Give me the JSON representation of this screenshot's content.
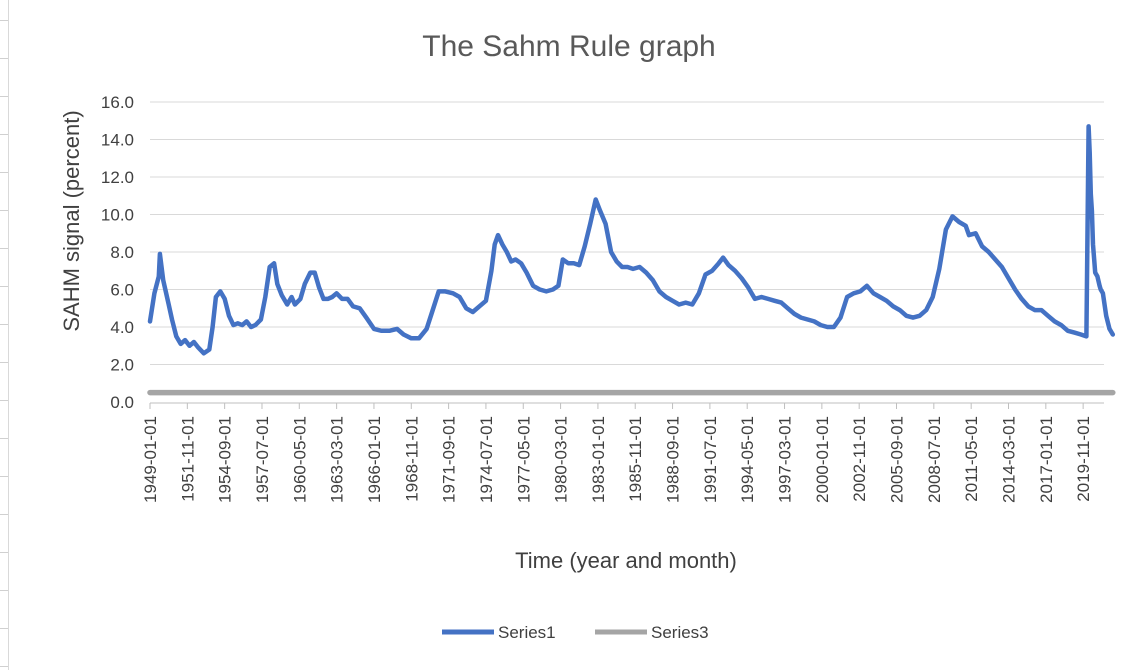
{
  "chart_data": {
    "type": "line",
    "title": "The Sahm Rule graph",
    "xlabel": "Time (year and month)",
    "ylabel": "SAHM signal (percent)",
    "ylim": [
      0,
      16
    ],
    "yticks": [
      "0.0",
      "2.0",
      "4.0",
      "6.0",
      "8.0",
      "10.0",
      "12.0",
      "14.0",
      "16.0"
    ],
    "xticks": [
      "1949-01-01",
      "1951-11-01",
      "1954-09-01",
      "1957-07-01",
      "1960-05-01",
      "1963-03-01",
      "1966-01-01",
      "1968-11-01",
      "1971-09-01",
      "1974-07-01",
      "1977-05-01",
      "1980-03-01",
      "1983-01-01",
      "1985-11-01",
      "1988-09-01",
      "1991-07-01",
      "1994-05-01",
      "1997-03-01",
      "2000-01-01",
      "2002-11-01",
      "2005-09-01",
      "2008-07-01",
      "2011-05-01",
      "2014-03-01",
      "2017-01-01",
      "2019-11-01"
    ],
    "x_range": [
      "1949-01-01",
      "2021-06-01"
    ],
    "grid": true,
    "legend_position": "bottom",
    "colors": {
      "series1": "#4472c4",
      "series3": "#a5a5a5"
    },
    "series": [
      {
        "name": "Series1",
        "points": [
          [
            "1949-01-01",
            4.3
          ],
          [
            "1949-05-01",
            5.8
          ],
          [
            "1949-09-01",
            6.7
          ],
          [
            "1949-10-01",
            7.9
          ],
          [
            "1950-01-01",
            6.5
          ],
          [
            "1950-06-01",
            5.2
          ],
          [
            "1950-09-01",
            4.4
          ],
          [
            "1951-01-01",
            3.5
          ],
          [
            "1951-05-01",
            3.1
          ],
          [
            "1951-09-01",
            3.3
          ],
          [
            "1952-01-01",
            3.0
          ],
          [
            "1952-05-01",
            3.2
          ],
          [
            "1952-09-01",
            2.9
          ],
          [
            "1953-02-01",
            2.6
          ],
          [
            "1953-07-01",
            2.8
          ],
          [
            "1953-10-01",
            4.0
          ],
          [
            "1954-01-01",
            5.6
          ],
          [
            "1954-05-01",
            5.9
          ],
          [
            "1954-09-01",
            5.5
          ],
          [
            "1955-01-01",
            4.6
          ],
          [
            "1955-05-01",
            4.1
          ],
          [
            "1955-09-01",
            4.2
          ],
          [
            "1956-01-01",
            4.1
          ],
          [
            "1956-05-01",
            4.3
          ],
          [
            "1956-09-01",
            4.0
          ],
          [
            "1957-01-01",
            4.1
          ],
          [
            "1957-06-01",
            4.4
          ],
          [
            "1957-10-01",
            5.6
          ],
          [
            "1958-02-01",
            7.2
          ],
          [
            "1958-06-01",
            7.4
          ],
          [
            "1958-09-01",
            6.3
          ],
          [
            "1959-01-01",
            5.7
          ],
          [
            "1959-06-01",
            5.2
          ],
          [
            "1959-10-01",
            5.6
          ],
          [
            "1960-01-01",
            5.2
          ],
          [
            "1960-06-01",
            5.5
          ],
          [
            "1960-10-01",
            6.3
          ],
          [
            "1961-03-01",
            6.9
          ],
          [
            "1961-07-01",
            6.9
          ],
          [
            "1961-11-01",
            6.1
          ],
          [
            "1962-03-01",
            5.5
          ],
          [
            "1962-07-01",
            5.5
          ],
          [
            "1962-11-01",
            5.6
          ],
          [
            "1963-03-01",
            5.8
          ],
          [
            "1963-08-01",
            5.5
          ],
          [
            "1964-01-01",
            5.5
          ],
          [
            "1964-06-01",
            5.1
          ],
          [
            "1964-12-01",
            5.0
          ],
          [
            "1965-06-01",
            4.5
          ],
          [
            "1966-01-01",
            3.9
          ],
          [
            "1966-08-01",
            3.8
          ],
          [
            "1967-03-01",
            3.8
          ],
          [
            "1967-10-01",
            3.9
          ],
          [
            "1968-04-01",
            3.6
          ],
          [
            "1968-11-01",
            3.4
          ],
          [
            "1969-06-01",
            3.4
          ],
          [
            "1970-01-01",
            3.9
          ],
          [
            "1970-06-01",
            4.8
          ],
          [
            "1970-12-01",
            5.9
          ],
          [
            "1971-06-01",
            5.9
          ],
          [
            "1972-01-01",
            5.8
          ],
          [
            "1972-07-01",
            5.6
          ],
          [
            "1973-01-01",
            5.0
          ],
          [
            "1973-07-01",
            4.8
          ],
          [
            "1974-01-01",
            5.1
          ],
          [
            "1974-07-01",
            5.4
          ],
          [
            "1974-12-01",
            7.0
          ],
          [
            "1975-03-01",
            8.4
          ],
          [
            "1975-06-01",
            8.9
          ],
          [
            "1975-10-01",
            8.4
          ],
          [
            "1976-02-01",
            8.0
          ],
          [
            "1976-06-01",
            7.5
          ],
          [
            "1976-10-01",
            7.6
          ],
          [
            "1977-03-01",
            7.4
          ],
          [
            "1977-08-01",
            6.9
          ],
          [
            "1978-02-01",
            6.2
          ],
          [
            "1978-08-01",
            6.0
          ],
          [
            "1979-02-01",
            5.9
          ],
          [
            "1979-08-01",
            6.0
          ],
          [
            "1980-01-01",
            6.2
          ],
          [
            "1980-05-01",
            7.6
          ],
          [
            "1980-10-01",
            7.4
          ],
          [
            "1981-03-01",
            7.4
          ],
          [
            "1981-08-01",
            7.3
          ],
          [
            "1982-01-01",
            8.3
          ],
          [
            "1982-06-01",
            9.5
          ],
          [
            "1982-11-01",
            10.8
          ],
          [
            "1983-03-01",
            10.2
          ],
          [
            "1983-08-01",
            9.5
          ],
          [
            "1984-01-01",
            8.0
          ],
          [
            "1984-06-01",
            7.5
          ],
          [
            "1984-11-01",
            7.2
          ],
          [
            "1985-04-01",
            7.2
          ],
          [
            "1985-09-01",
            7.1
          ],
          [
            "1986-03-01",
            7.2
          ],
          [
            "1986-09-01",
            6.9
          ],
          [
            "1987-03-01",
            6.5
          ],
          [
            "1987-09-01",
            5.9
          ],
          [
            "1988-03-01",
            5.6
          ],
          [
            "1988-09-01",
            5.4
          ],
          [
            "1989-03-01",
            5.2
          ],
          [
            "1989-09-01",
            5.3
          ],
          [
            "1990-03-01",
            5.2
          ],
          [
            "1990-09-01",
            5.8
          ],
          [
            "1991-03-01",
            6.8
          ],
          [
            "1991-09-01",
            7.0
          ],
          [
            "1992-03-01",
            7.4
          ],
          [
            "1992-07-01",
            7.7
          ],
          [
            "1992-12-01",
            7.3
          ],
          [
            "1993-06-01",
            7.0
          ],
          [
            "1993-12-01",
            6.6
          ],
          [
            "1994-06-01",
            6.1
          ],
          [
            "1994-12-01",
            5.5
          ],
          [
            "1995-06-01",
            5.6
          ],
          [
            "1995-12-01",
            5.5
          ],
          [
            "1996-06-01",
            5.4
          ],
          [
            "1996-12-01",
            5.3
          ],
          [
            "1997-06-01",
            5.0
          ],
          [
            "1997-12-01",
            4.7
          ],
          [
            "1998-06-01",
            4.5
          ],
          [
            "1998-12-01",
            4.4
          ],
          [
            "1999-06-01",
            4.3
          ],
          [
            "1999-12-01",
            4.1
          ],
          [
            "2000-06-01",
            4.0
          ],
          [
            "2000-12-01",
            4.0
          ],
          [
            "2001-06-01",
            4.5
          ],
          [
            "2001-12-01",
            5.6
          ],
          [
            "2002-06-01",
            5.8
          ],
          [
            "2002-12-01",
            5.9
          ],
          [
            "2003-06-01",
            6.2
          ],
          [
            "2003-12-01",
            5.8
          ],
          [
            "2004-06-01",
            5.6
          ],
          [
            "2004-12-01",
            5.4
          ],
          [
            "2005-06-01",
            5.1
          ],
          [
            "2005-12-01",
            4.9
          ],
          [
            "2006-06-01",
            4.6
          ],
          [
            "2006-12-01",
            4.5
          ],
          [
            "2007-06-01",
            4.6
          ],
          [
            "2007-12-01",
            4.9
          ],
          [
            "2008-06-01",
            5.6
          ],
          [
            "2008-12-01",
            7.1
          ],
          [
            "2009-06-01",
            9.2
          ],
          [
            "2009-12-01",
            9.9
          ],
          [
            "2010-06-01",
            9.6
          ],
          [
            "2010-12-01",
            9.4
          ],
          [
            "2011-03-01",
            8.9
          ],
          [
            "2011-09-01",
            9.0
          ],
          [
            "2012-03-01",
            8.3
          ],
          [
            "2012-09-01",
            8.0
          ],
          [
            "2013-03-01",
            7.6
          ],
          [
            "2013-09-01",
            7.2
          ],
          [
            "2014-03-01",
            6.6
          ],
          [
            "2014-09-01",
            6.0
          ],
          [
            "2015-03-01",
            5.5
          ],
          [
            "2015-09-01",
            5.1
          ],
          [
            "2016-03-01",
            4.9
          ],
          [
            "2016-09-01",
            4.9
          ],
          [
            "2017-03-01",
            4.6
          ],
          [
            "2017-09-01",
            4.3
          ],
          [
            "2018-03-01",
            4.1
          ],
          [
            "2018-09-01",
            3.8
          ],
          [
            "2019-03-01",
            3.7
          ],
          [
            "2019-09-01",
            3.6
          ],
          [
            "2020-02-01",
            3.5
          ],
          [
            "2020-04-01",
            14.7
          ],
          [
            "2020-05-01",
            13.3
          ],
          [
            "2020-06-01",
            11.1
          ],
          [
            "2020-07-01",
            10.2
          ],
          [
            "2020-08-01",
            8.4
          ],
          [
            "2020-10-01",
            6.9
          ],
          [
            "2020-12-01",
            6.7
          ],
          [
            "2021-02-01",
            6.2
          ],
          [
            "2021-03-01",
            6.0
          ],
          [
            "2021-05-01",
            5.8
          ],
          [
            "2021-08-01",
            4.6
          ],
          [
            "2021-11-01",
            3.9
          ],
          [
            "2022-02-01",
            3.6
          ]
        ]
      },
      {
        "name": "Series3",
        "points": [
          [
            "1949-01-01",
            0.5
          ],
          [
            "2022-02-01",
            0.5
          ]
        ]
      }
    ]
  }
}
